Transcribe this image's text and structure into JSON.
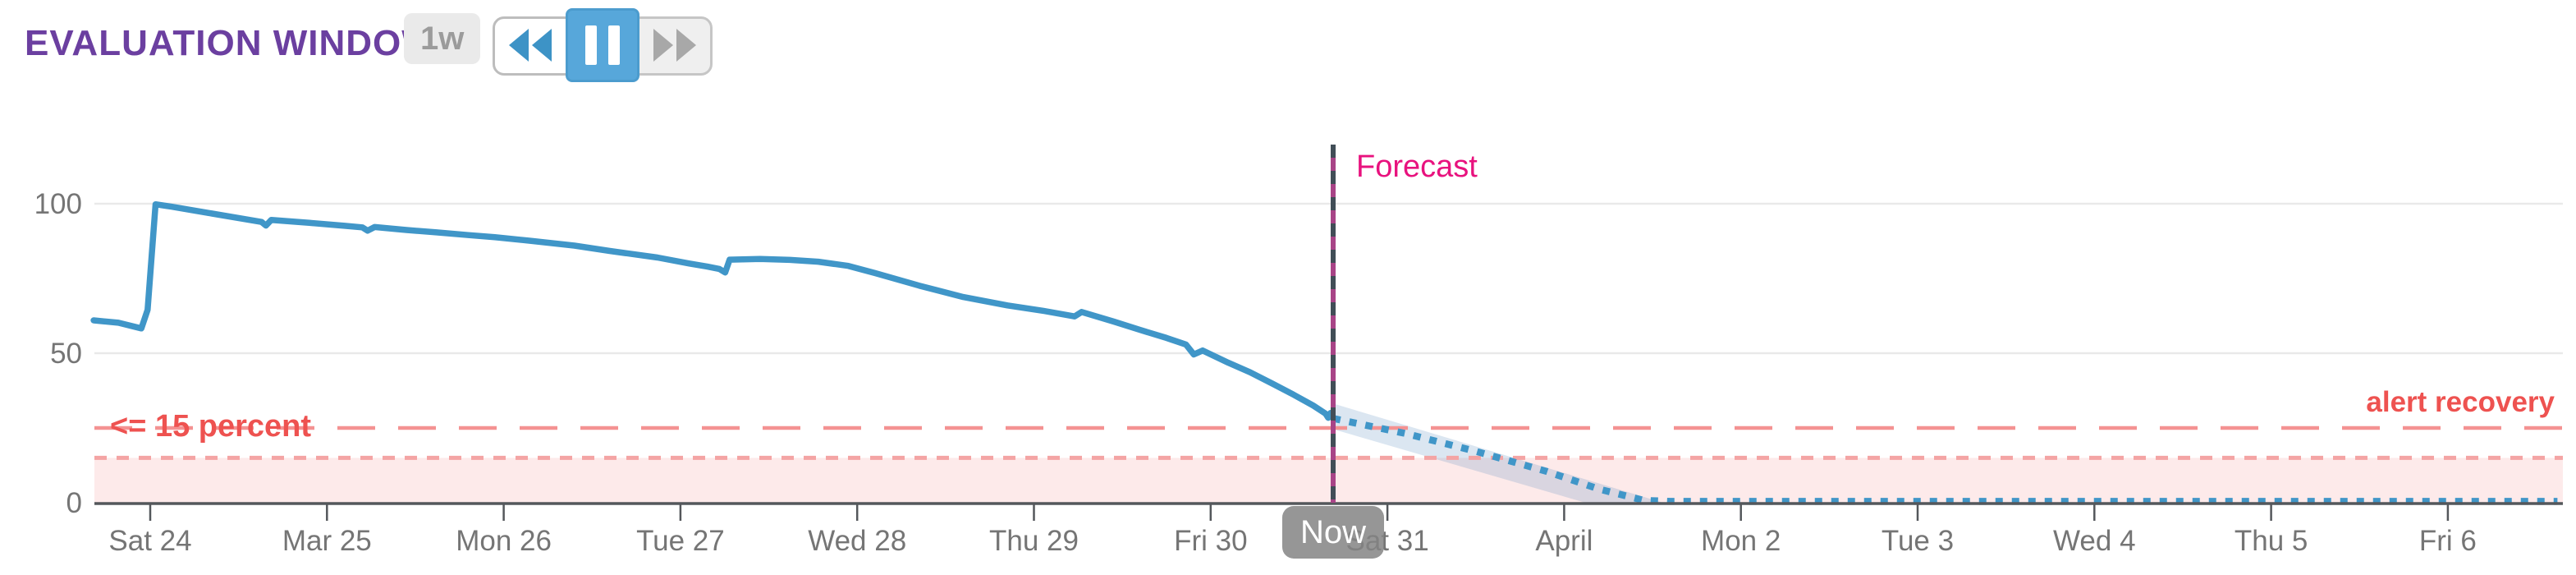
{
  "header": {
    "title": "EVALUATION WINDOW",
    "window_badge": "1w",
    "controls": [
      {
        "id": "rewind",
        "icon": "rewind-icon",
        "active": false
      },
      {
        "id": "pause",
        "icon": "pause-icon",
        "active": true
      },
      {
        "id": "fast-forward",
        "icon": "fast-forward-icon",
        "active": false
      }
    ]
  },
  "chart_data": {
    "type": "line",
    "y_axis": {
      "ticks": [
        0,
        50,
        100
      ],
      "range": [
        0,
        115
      ],
      "grid": true
    },
    "x_axis": {
      "tick_labels": [
        "Sat 24",
        "Mar 25",
        "Mon 26",
        "Tue 27",
        "Wed 28",
        "Thu 29",
        "Fri 30",
        "Sat 31",
        "April",
        "Mon 2",
        "Tue 3",
        "Wed 4",
        "Thu 5",
        "Fri 6"
      ]
    },
    "now_marker": {
      "label": "Now",
      "day": 6.693
    },
    "forecast_label": "Forecast",
    "alert": {
      "threshold_label": "<= 15 percent",
      "threshold_value": 15,
      "recovery_label": "alert recovery",
      "recovery_value": 25
    },
    "series": [
      {
        "name": "metric-history",
        "style": "solid-line",
        "unit": "percent",
        "points": [
          [
            -0.32,
            61.0
          ],
          [
            -0.18,
            60.2
          ],
          [
            -0.05,
            58.3
          ],
          [
            -0.015,
            64.5
          ],
          [
            0.03,
            99.8
          ],
          [
            0.12,
            99.0
          ],
          [
            0.35,
            96.7
          ],
          [
            0.63,
            93.9
          ],
          [
            0.655,
            92.7
          ],
          [
            0.685,
            94.6
          ],
          [
            0.9,
            93.6
          ],
          [
            1.1,
            92.6
          ],
          [
            1.2,
            92.1
          ],
          [
            1.23,
            91.0
          ],
          [
            1.27,
            92.2
          ],
          [
            1.45,
            91.2
          ],
          [
            1.62,
            90.4
          ],
          [
            1.8,
            89.5
          ],
          [
            1.95,
            88.8
          ],
          [
            2.15,
            87.6
          ],
          [
            2.4,
            86.0
          ],
          [
            2.6,
            84.2
          ],
          [
            2.87,
            82.0
          ],
          [
            3.05,
            80.0
          ],
          [
            3.15,
            79.0
          ],
          [
            3.22,
            78.2
          ],
          [
            3.253,
            77.0
          ],
          [
            3.278,
            81.3
          ],
          [
            3.45,
            81.5
          ],
          [
            3.62,
            81.2
          ],
          [
            3.78,
            80.6
          ],
          [
            3.95,
            79.2
          ],
          [
            4.1,
            76.8
          ],
          [
            4.35,
            72.6
          ],
          [
            4.6,
            68.8
          ],
          [
            4.85,
            66.0
          ],
          [
            5.05,
            64.2
          ],
          [
            5.23,
            62.3
          ],
          [
            5.27,
            63.8
          ],
          [
            5.45,
            60.6
          ],
          [
            5.6,
            57.8
          ],
          [
            5.75,
            55.1
          ],
          [
            5.86,
            52.9
          ],
          [
            5.905,
            49.6
          ],
          [
            5.955,
            50.9
          ],
          [
            6.1,
            46.8
          ],
          [
            6.22,
            43.7
          ],
          [
            6.35,
            39.8
          ],
          [
            6.47,
            36.1
          ],
          [
            6.58,
            32.5
          ],
          [
            6.65,
            29.8
          ],
          [
            6.665,
            28.4
          ],
          [
            6.678,
            30.0
          ],
          [
            6.693,
            28.2
          ]
        ]
      },
      {
        "name": "metric-forecast",
        "style": "dotted-line",
        "unit": "percent",
        "points": [
          [
            6.693,
            28.2
          ],
          [
            7.1,
            23.2
          ],
          [
            7.5,
            17.2
          ],
          [
            7.9,
            10.5
          ],
          [
            8.2,
            4.5
          ],
          [
            8.45,
            0.8
          ],
          [
            8.6,
            0.45
          ],
          [
            13.62,
            0.45
          ]
        ]
      },
      {
        "name": "forecast-confidence-band",
        "style": "band",
        "upper": [
          [
            6.693,
            33.2
          ],
          [
            8.56,
            0
          ]
        ],
        "lower": [
          [
            6.693,
            24.6
          ],
          [
            8.12,
            0
          ]
        ]
      }
    ]
  },
  "colors": {
    "title_purple": "#6B3FA0",
    "line_blue": "#4096C8",
    "pause_active_blue": "#57A7DA",
    "alert_text_red": "#EE5250",
    "recovery_dash_red": "#F49292",
    "threshold_dot_pink": "#F4A4A4",
    "alert_zone_fill": "rgba(242,140,140,0.18)",
    "confidence_band_fill": "rgba(90,140,190,0.22)",
    "forecast_label_pink": "#E8127E",
    "now_line_magenta": "#A84487",
    "now_line_dash_dark": "#414E57",
    "now_badge_gray": "rgba(132,132,132,0.85)",
    "axis_gray": "#54575B",
    "label_gray": "#757575",
    "grid_gray": "#E9E9E9"
  }
}
